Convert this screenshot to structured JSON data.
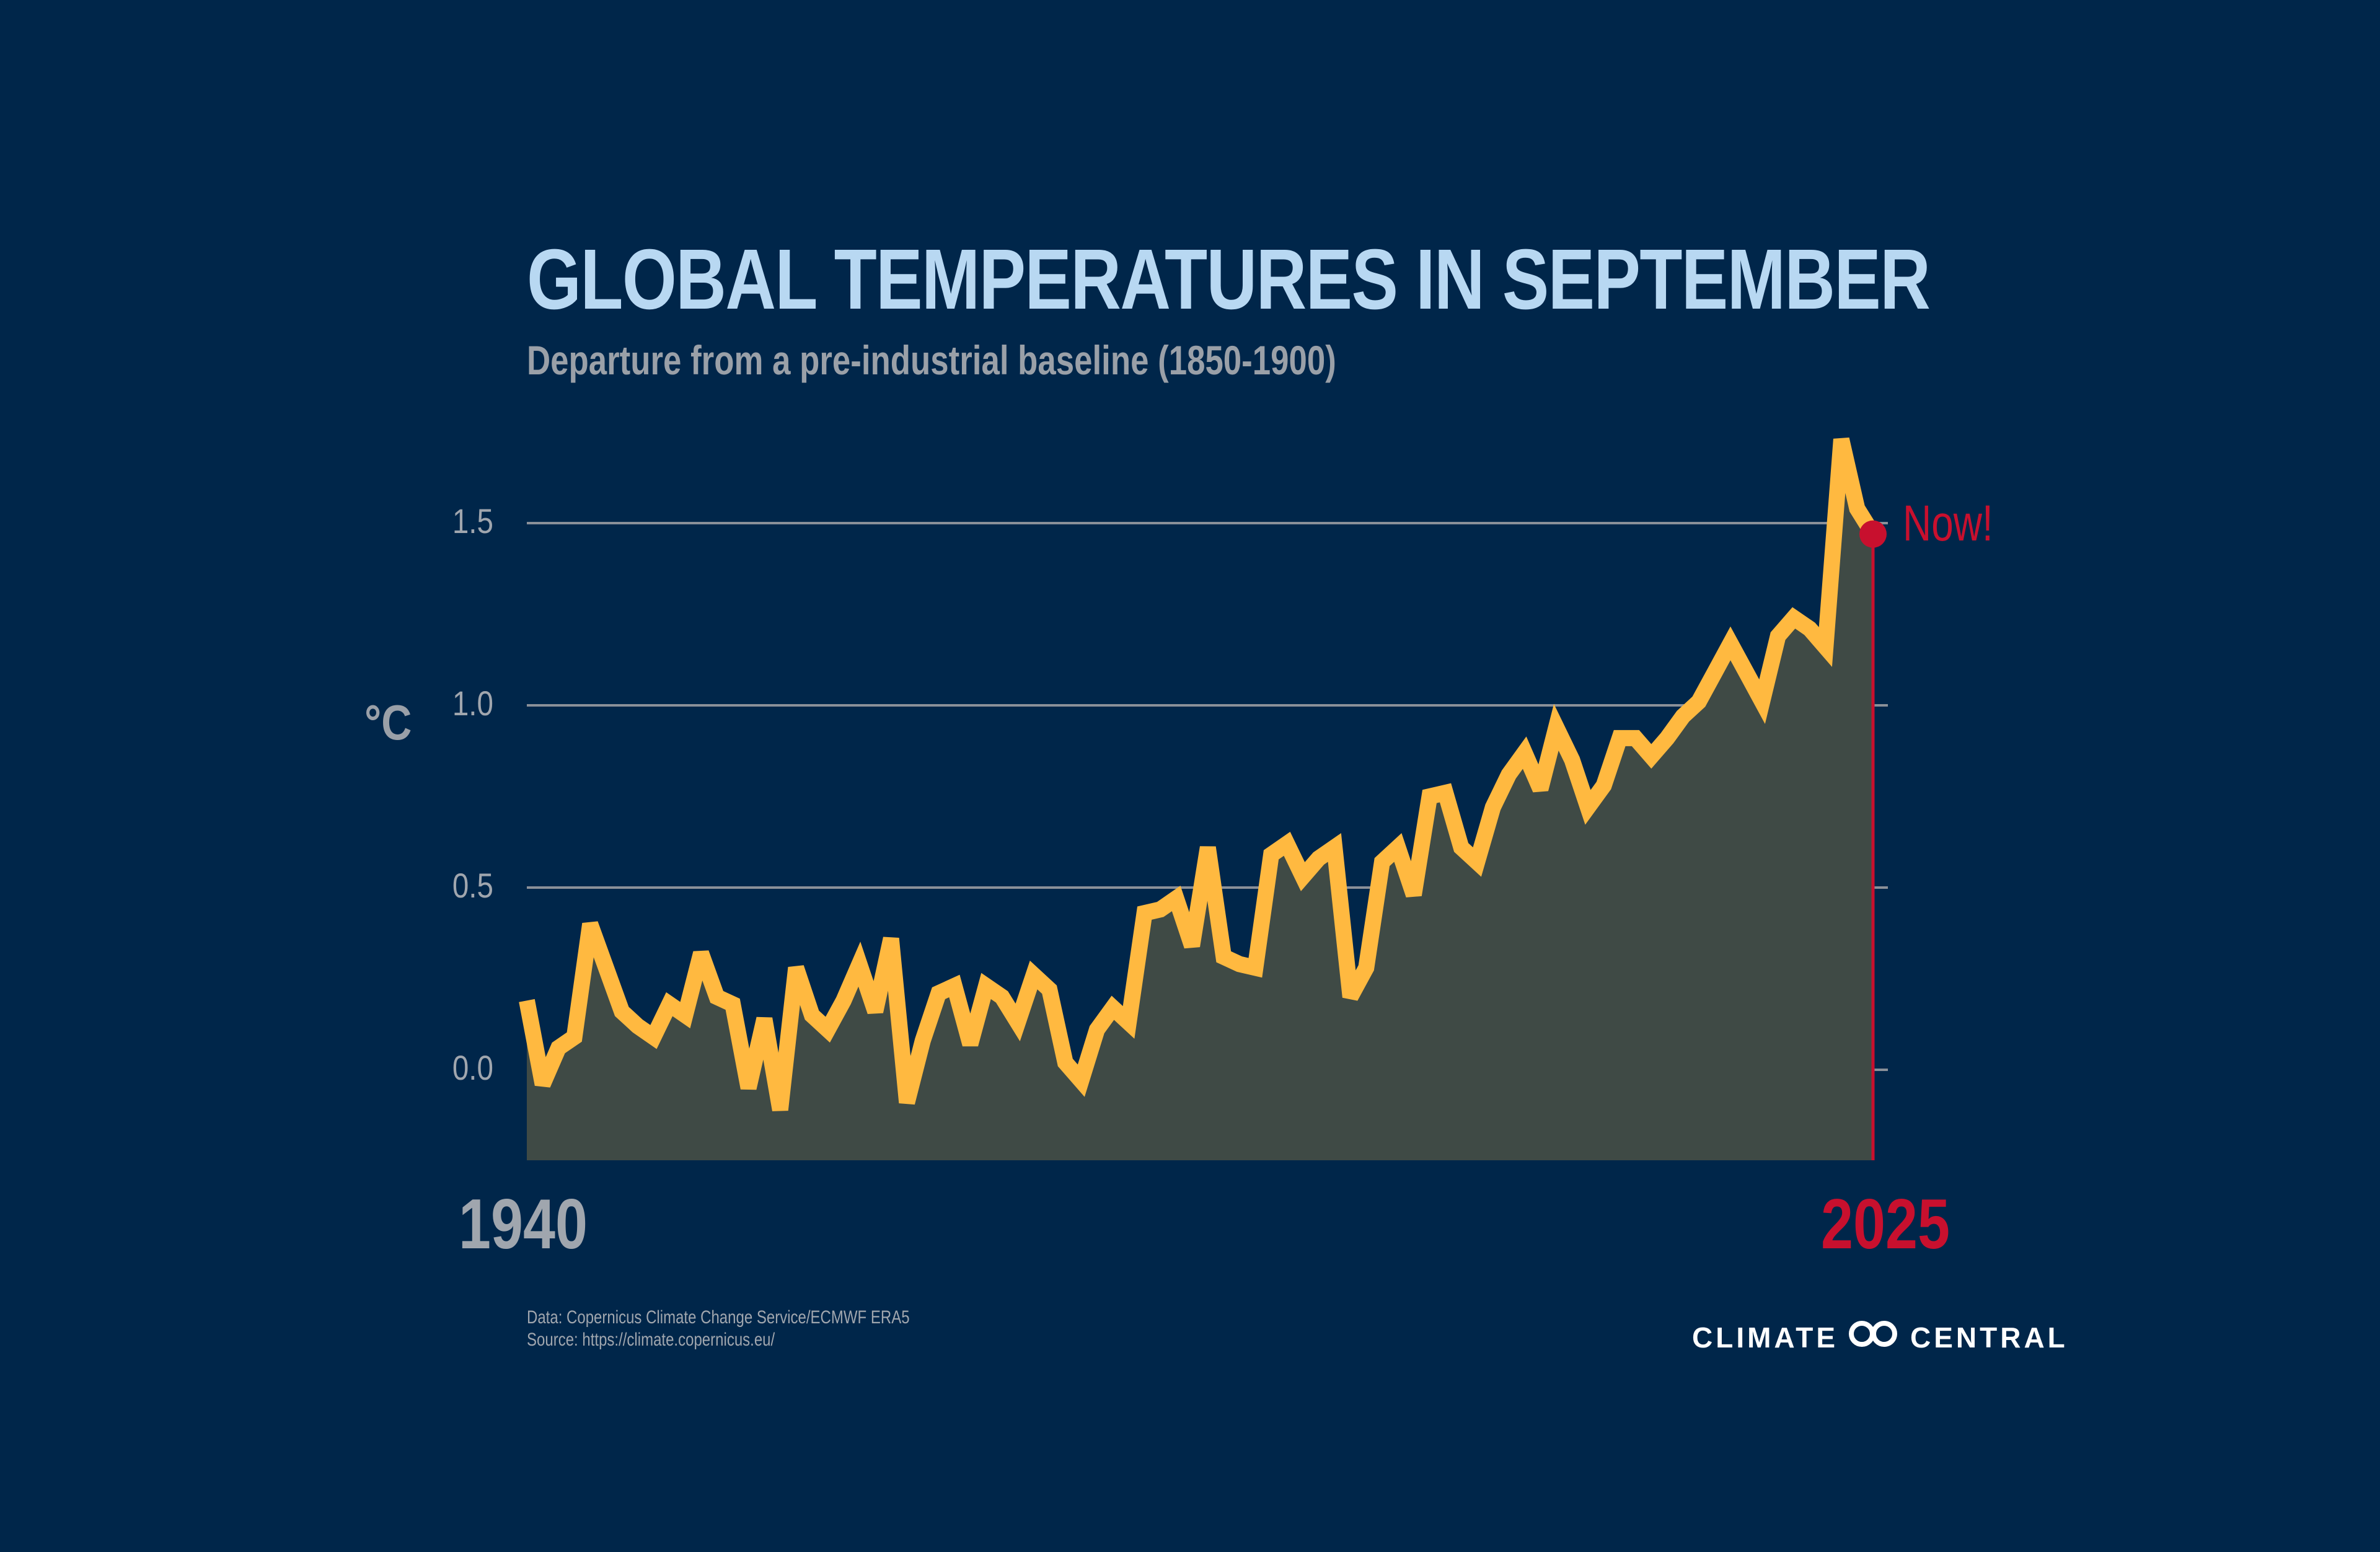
{
  "colors": {
    "background": "#00264a",
    "line": "#ffb940",
    "area": "#3f4a45",
    "grid": "#8a9099",
    "accent": "#c8102e",
    "title": "#b8d8f2"
  },
  "chart_data": {
    "type": "area",
    "title": "GLOBAL TEMPERATURES IN SEPTEMBER",
    "subtitle": "Departure from a pre-industrial baseline (1850-1900)",
    "ylabel": "°C",
    "xlabel": "",
    "ylim": [
      -0.25,
      1.8
    ],
    "yticks": [
      "1.5",
      "1.0",
      "0.5",
      "0.0"
    ],
    "ytick_values": [
      1.5,
      1.0,
      0.5,
      0.0
    ],
    "x_start_label": "1940",
    "x_end_label": "2025",
    "grid": true,
    "x": [
      1940,
      1941,
      1942,
      1943,
      1944,
      1945,
      1946,
      1947,
      1948,
      1949,
      1950,
      1951,
      1952,
      1953,
      1954,
      1955,
      1956,
      1957,
      1958,
      1959,
      1960,
      1961,
      1962,
      1963,
      1964,
      1965,
      1966,
      1967,
      1968,
      1969,
      1970,
      1971,
      1972,
      1973,
      1974,
      1975,
      1976,
      1977,
      1978,
      1979,
      1980,
      1981,
      1982,
      1983,
      1984,
      1985,
      1986,
      1987,
      1988,
      1989,
      1990,
      1991,
      1992,
      1993,
      1994,
      1995,
      1996,
      1997,
      1998,
      1999,
      2000,
      2001,
      2002,
      2003,
      2004,
      2005,
      2006,
      2007,
      2008,
      2009,
      2010,
      2011,
      2012,
      2013,
      2014,
      2015,
      2016,
      2017,
      2018,
      2019,
      2020,
      2021,
      2022,
      2023,
      2024,
      2025
    ],
    "series": [
      {
        "values": [
          0.19,
          -0.04,
          0.06,
          0.09,
          0.4,
          0.28,
          0.16,
          0.12,
          0.09,
          0.18,
          0.15,
          0.32,
          0.2,
          0.18,
          -0.05,
          0.14,
          -0.11,
          0.28,
          0.15,
          0.11,
          0.19,
          0.29,
          0.16,
          0.36,
          -0.09,
          0.08,
          0.21,
          0.23,
          0.07,
          0.23,
          0.2,
          0.13,
          0.26,
          0.22,
          0.02,
          -0.03,
          0.11,
          0.17,
          0.13,
          0.43,
          0.44,
          0.47,
          0.34,
          0.61,
          0.31,
          0.29,
          0.28,
          0.59,
          0.62,
          0.53,
          0.58,
          0.61,
          0.2,
          0.28,
          0.57,
          0.61,
          0.48,
          0.75,
          0.76,
          0.61,
          0.57,
          0.72,
          0.81,
          0.87,
          0.77,
          0.94,
          0.85,
          0.72,
          0.78,
          0.91,
          0.91,
          0.86,
          0.91,
          0.97,
          1.01,
          1.09,
          1.17,
          1.09,
          1.01,
          1.19,
          1.24,
          1.21,
          1.16,
          1.73,
          1.54,
          1.47
        ]
      }
    ],
    "annotations": [
      {
        "text": "Now!",
        "x": 2025,
        "y": 1.47
      }
    ]
  },
  "source": {
    "line1": "Data: Copernicus Climate Change Service/ECMWF ERA5",
    "line2": "Source: https://climate.copernicus.eu/"
  },
  "logo": {
    "left_text": "CLIMATE",
    "right_text": "CENTRAL",
    "icon": "infinity-rings-icon"
  }
}
